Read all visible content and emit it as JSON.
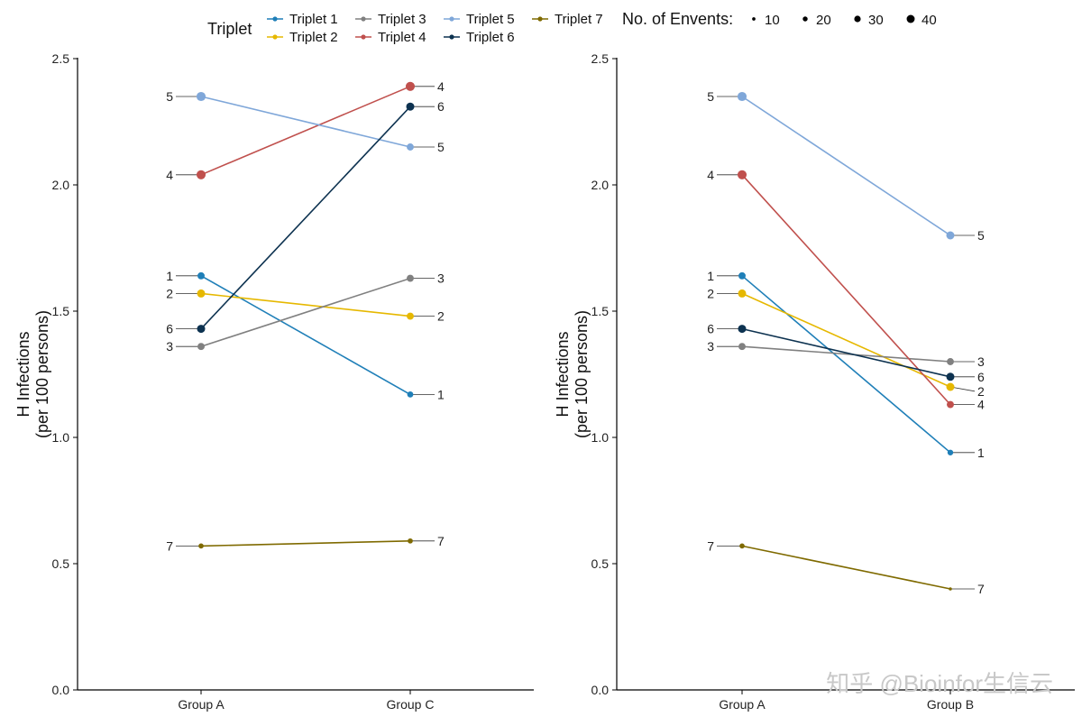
{
  "legend": {
    "title": "Triplet",
    "size_title": "No. of Envents:",
    "size_values": [
      10,
      20,
      30,
      40
    ]
  },
  "watermark": "知乎 @Bioinfor生信云",
  "colors": {
    "Triplet 1": "#1f7fb8",
    "Triplet 2": "#e6b800",
    "Triplet 3": "#808080",
    "Triplet 4": "#c0504d",
    "Triplet 5": "#7fa7d9",
    "Triplet 6": "#0d3250",
    "Triplet 7": "#7f6a00"
  },
  "chart_data": [
    {
      "type": "line",
      "categories": [
        "Group A",
        "Group C"
      ],
      "ylabel_line1": "H Infections",
      "ylabel_line2": "(per 100 persons)",
      "ylim": [
        0,
        2.5
      ],
      "yticks": [
        "0.0",
        "0.5",
        "1.0",
        "1.5",
        "2.0",
        "2.5"
      ],
      "series": [
        {
          "name": "Triplet 1",
          "label": "1",
          "values": [
            1.64,
            1.17
          ],
          "events": [
            25,
            20
          ]
        },
        {
          "name": "Triplet 2",
          "label": "2",
          "values": [
            1.57,
            1.48
          ],
          "events": [
            30,
            25
          ]
        },
        {
          "name": "Triplet 3",
          "label": "3",
          "values": [
            1.36,
            1.63
          ],
          "events": [
            25,
            25
          ]
        },
        {
          "name": "Triplet 4",
          "label": "4",
          "values": [
            2.04,
            2.39
          ],
          "events": [
            35,
            35
          ]
        },
        {
          "name": "Triplet 5",
          "label": "5",
          "values": [
            2.35,
            2.15
          ],
          "events": [
            35,
            25
          ]
        },
        {
          "name": "Triplet 6",
          "label": "6",
          "values": [
            1.43,
            2.31
          ],
          "events": [
            30,
            30
          ]
        },
        {
          "name": "Triplet 7",
          "label": "7",
          "values": [
            0.57,
            0.59
          ],
          "events": [
            15,
            15
          ]
        }
      ]
    },
    {
      "type": "line",
      "categories": [
        "Group A",
        "Group B"
      ],
      "ylabel_line1": "H Infections",
      "ylabel_line2": "(per 100 persons)",
      "ylim": [
        0,
        2.5
      ],
      "yticks": [
        "0.0",
        "0.5",
        "1.0",
        "1.5",
        "2.0",
        "2.5"
      ],
      "series": [
        {
          "name": "Triplet 1",
          "label": "1",
          "values": [
            1.64,
            0.94
          ],
          "events": [
            25,
            18
          ]
        },
        {
          "name": "Triplet 2",
          "label": "2",
          "values": [
            1.57,
            1.2
          ],
          "events": [
            30,
            30
          ]
        },
        {
          "name": "Triplet 3",
          "label": "3",
          "values": [
            1.36,
            1.3
          ],
          "events": [
            25,
            25
          ]
        },
        {
          "name": "Triplet 4",
          "label": "4",
          "values": [
            2.04,
            1.13
          ],
          "events": [
            35,
            25
          ]
        },
        {
          "name": "Triplet 5",
          "label": "5",
          "values": [
            2.35,
            1.8
          ],
          "events": [
            35,
            30
          ]
        },
        {
          "name": "Triplet 6",
          "label": "6",
          "values": [
            1.43,
            1.24
          ],
          "events": [
            30,
            30
          ]
        },
        {
          "name": "Triplet 7",
          "label": "7",
          "values": [
            0.57,
            0.4
          ],
          "events": [
            15,
            5
          ]
        }
      ]
    }
  ]
}
